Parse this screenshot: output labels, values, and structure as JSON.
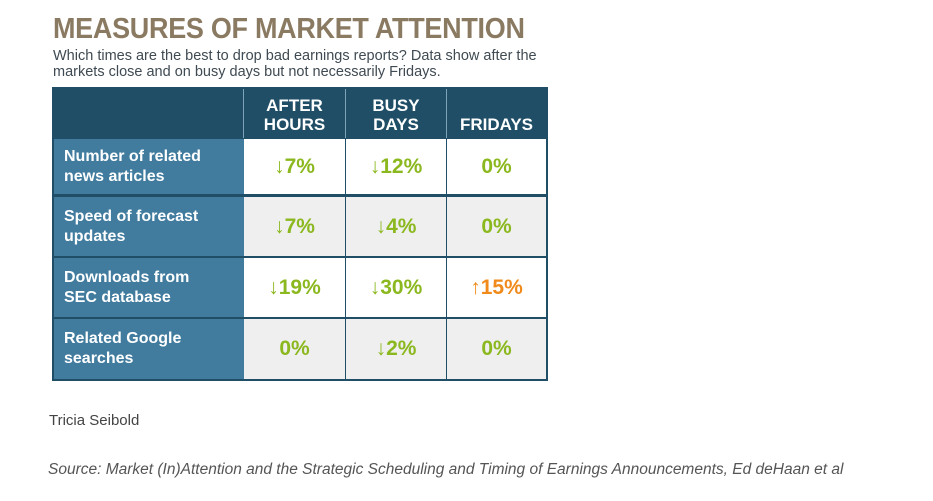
{
  "title": "MEASURES OF MARKET ATTENTION",
  "subtitle": "Which times are the best to drop bad earnings reports? Data show after the markets close and on busy days but not necessarily Fridays.",
  "chart_data": {
    "type": "table",
    "columns": [
      "AFTER\nHOURS",
      "BUSY\nDAYS",
      "FRIDAYS"
    ],
    "rows": [
      {
        "label": "Number of related\nnews articles",
        "cells": [
          "↓7%",
          "↓12%",
          "0%"
        ],
        "values": [
          -7,
          -12,
          0
        ]
      },
      {
        "label": "Speed of forecast\nupdates",
        "cells": [
          "↓7%",
          "↓4%",
          "0%"
        ],
        "values": [
          -7,
          -4,
          0
        ]
      },
      {
        "label": "Downloads from\nSEC database",
        "cells": [
          "↓19%",
          "↓30%",
          "↑15%"
        ],
        "values": [
          -19,
          -30,
          15
        ]
      },
      {
        "label": "Related Google\nsearches",
        "cells": [
          "0%",
          "↓2%",
          "0%"
        ],
        "values": [
          0,
          -2,
          0
        ]
      }
    ],
    "colors": {
      "decrease": "#8bb81e",
      "increase": "#f08a1b",
      "header": "#1f4e66",
      "label_bg": "#417c9f"
    }
  },
  "credit": "Tricia Seibold",
  "source": "Source: Market (In)Attention and the Strategic Scheduling and Timing of Earnings Announcements, Ed deHaan et al"
}
